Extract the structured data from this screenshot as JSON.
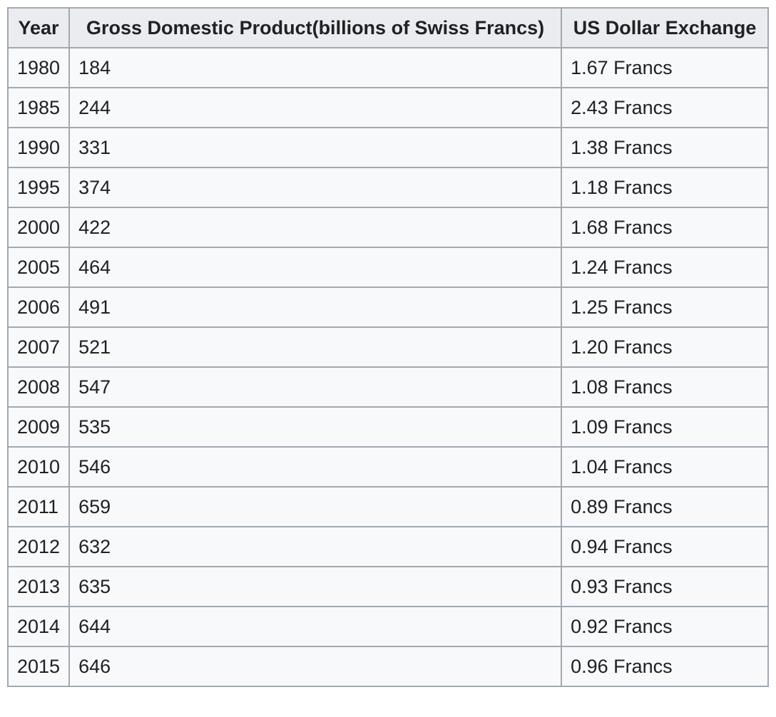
{
  "chart_data": {
    "type": "table",
    "columns": [
      "Year",
      "Gross Domestic Product(billions of Swiss Francs)",
      "US Dollar Exchange"
    ],
    "rows": [
      [
        "1980",
        "184",
        "1.67 Francs"
      ],
      [
        "1985",
        "244",
        "2.43 Francs"
      ],
      [
        "1990",
        "331",
        "1.38 Francs"
      ],
      [
        "1995",
        "374",
        "1.18 Francs"
      ],
      [
        "2000",
        "422",
        "1.68 Francs"
      ],
      [
        "2005",
        "464",
        "1.24 Francs"
      ],
      [
        "2006",
        "491",
        "1.25 Francs"
      ],
      [
        "2007",
        "521",
        "1.20 Francs"
      ],
      [
        "2008",
        "547",
        "1.08 Francs"
      ],
      [
        "2009",
        "535",
        "1.09 Francs"
      ],
      [
        "2010",
        "546",
        "1.04 Francs"
      ],
      [
        "2011",
        "659",
        "0.89 Francs"
      ],
      [
        "2012",
        "632",
        "0.94 Francs"
      ],
      [
        "2013",
        "635",
        "0.93 Francs"
      ],
      [
        "2014",
        "644",
        "0.92 Francs"
      ],
      [
        "2015",
        "646",
        "0.96 Francs"
      ]
    ]
  },
  "colors": {
    "header_bg": "#eaecf0",
    "cell_bg": "#f8f9fa",
    "border": "#a2a9b1",
    "text": "#202122"
  }
}
